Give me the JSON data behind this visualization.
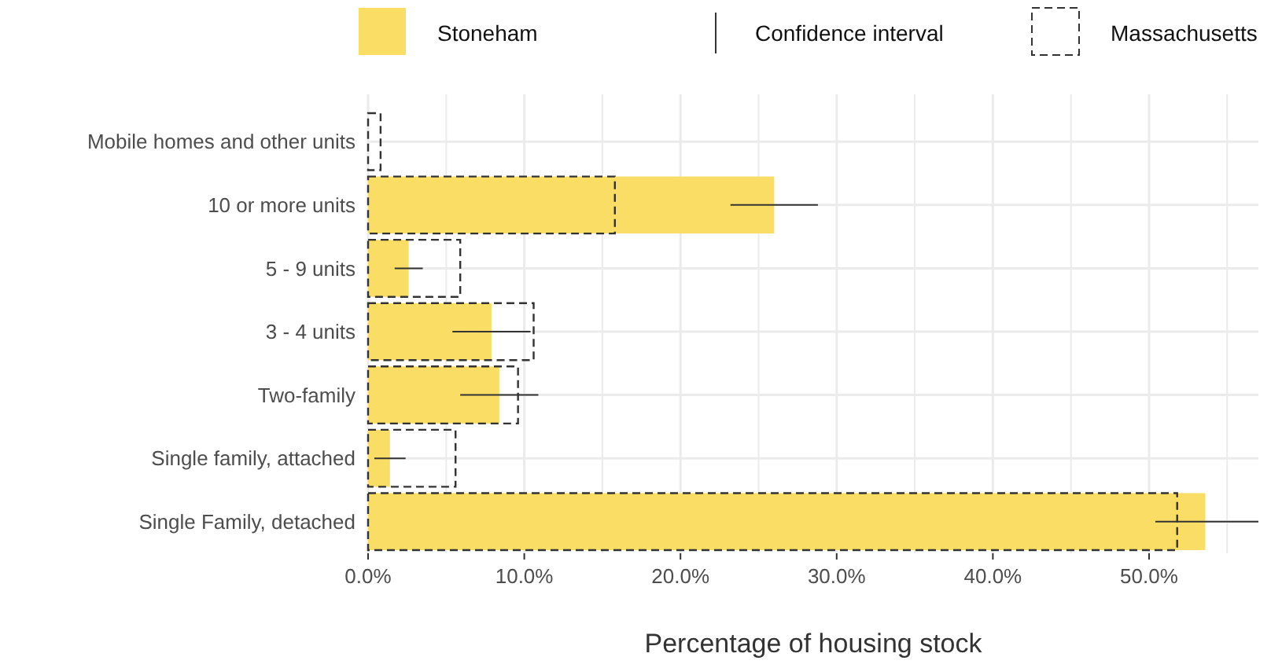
{
  "chart_data": {
    "type": "bar",
    "orientation": "horizontal",
    "xlabel": "Percentage of housing stock",
    "categories": [
      "Mobile homes and other units",
      "10 or more units",
      "5 - 9 units",
      "3 - 4 units",
      "Two-family",
      "Single family, attached",
      "Single Family, detached"
    ],
    "series": [
      {
        "name": "Stoneham",
        "color": "#f9dd64",
        "values": [
          0,
          26.0,
          2.6,
          7.9,
          8.4,
          1.4,
          53.6
        ],
        "errors": [
          null,
          [
            23.2,
            28.8
          ],
          [
            1.7,
            3.5
          ],
          [
            5.4,
            10.4
          ],
          [
            5.9,
            10.9
          ],
          [
            0.4,
            2.4
          ],
          [
            50.4,
            57
          ]
        ]
      },
      {
        "name": "Massachusetts",
        "color": "#333333",
        "line_style": "dashed",
        "values": [
          0.8,
          15.8,
          5.9,
          10.6,
          9.6,
          5.6,
          51.8
        ]
      }
    ],
    "xlim": [
      0,
      57
    ],
    "xticks": [
      {
        "value": 0,
        "label": "0.0%"
      },
      {
        "value": 5,
        "label": null
      },
      {
        "value": 10,
        "label": "10.0%"
      },
      {
        "value": 15,
        "label": null
      },
      {
        "value": 20,
        "label": "20.0%"
      },
      {
        "value": 25,
        "label": null
      },
      {
        "value": 30,
        "label": "30.0%"
      },
      {
        "value": 35,
        "label": null
      },
      {
        "value": 40,
        "label": "40.0%"
      },
      {
        "value": 45,
        "label": null
      },
      {
        "value": 50,
        "label": "50.0%"
      },
      {
        "value": 55,
        "label": null
      }
    ],
    "grid": true,
    "legend": "top",
    "annotations": [
      "Confidence interval"
    ]
  }
}
